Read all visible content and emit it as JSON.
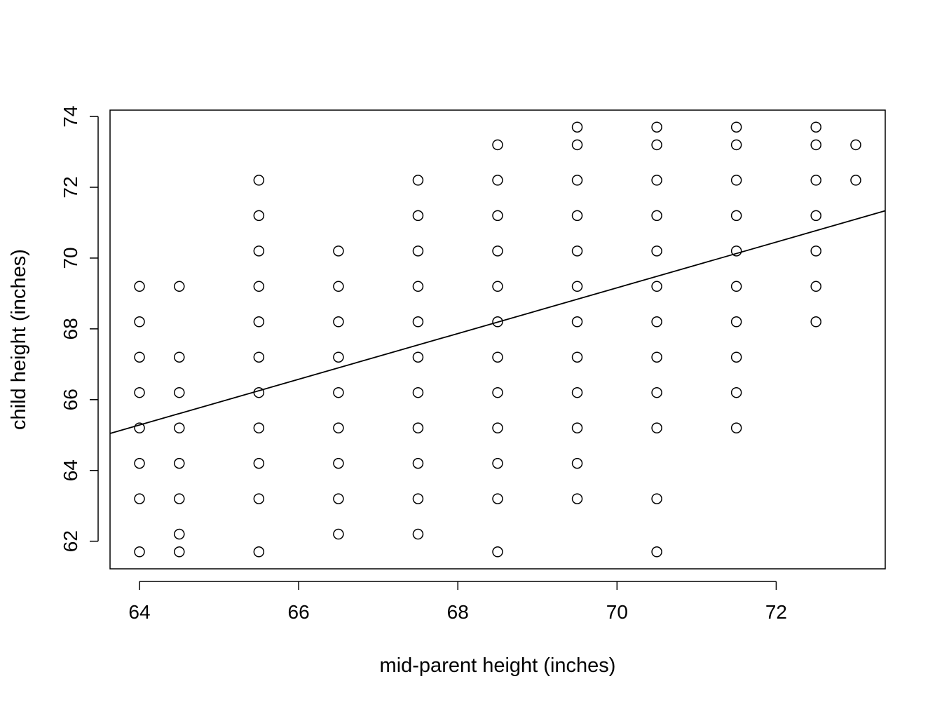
{
  "chart_data": {
    "type": "scatter",
    "title": "",
    "xlabel": "mid-parent height (inches)",
    "ylabel": "child height (inches)",
    "xlim": [
      63.63,
      73.37
    ],
    "ylim": [
      61.22,
      74.18
    ],
    "xticks": [
      64,
      66,
      68,
      70,
      72
    ],
    "yticks": [
      62,
      64,
      66,
      68,
      70,
      72,
      74
    ],
    "grid": false,
    "legend": "none",
    "marker": "open-circle",
    "regression_line": {
      "intercept": 23.94,
      "slope": 0.646
    },
    "series": [
      {
        "points": [
          [
            64,
            61.7
          ],
          [
            64,
            63.2
          ],
          [
            64,
            64.2
          ],
          [
            64,
            65.2
          ],
          [
            64,
            66.2
          ],
          [
            64,
            67.2
          ],
          [
            64,
            68.2
          ],
          [
            64,
            69.2
          ],
          [
            64.5,
            61.7
          ],
          [
            64.5,
            62.2
          ],
          [
            64.5,
            63.2
          ],
          [
            64.5,
            64.2
          ],
          [
            64.5,
            65.2
          ],
          [
            64.5,
            66.2
          ],
          [
            64.5,
            67.2
          ],
          [
            64.5,
            69.2
          ],
          [
            65.5,
            61.7
          ],
          [
            65.5,
            63.2
          ],
          [
            65.5,
            64.2
          ],
          [
            65.5,
            65.2
          ],
          [
            65.5,
            66.2
          ],
          [
            65.5,
            67.2
          ],
          [
            65.5,
            68.2
          ],
          [
            65.5,
            69.2
          ],
          [
            65.5,
            70.2
          ],
          [
            65.5,
            71.2
          ],
          [
            65.5,
            72.2
          ],
          [
            66.5,
            62.2
          ],
          [
            66.5,
            63.2
          ],
          [
            66.5,
            64.2
          ],
          [
            66.5,
            65.2
          ],
          [
            66.5,
            66.2
          ],
          [
            66.5,
            67.2
          ],
          [
            66.5,
            68.2
          ],
          [
            66.5,
            69.2
          ],
          [
            66.5,
            70.2
          ],
          [
            67.5,
            62.2
          ],
          [
            67.5,
            63.2
          ],
          [
            67.5,
            64.2
          ],
          [
            67.5,
            65.2
          ],
          [
            67.5,
            66.2
          ],
          [
            67.5,
            67.2
          ],
          [
            67.5,
            68.2
          ],
          [
            67.5,
            69.2
          ],
          [
            67.5,
            70.2
          ],
          [
            67.5,
            71.2
          ],
          [
            67.5,
            72.2
          ],
          [
            68.5,
            61.7
          ],
          [
            68.5,
            63.2
          ],
          [
            68.5,
            64.2
          ],
          [
            68.5,
            65.2
          ],
          [
            68.5,
            66.2
          ],
          [
            68.5,
            67.2
          ],
          [
            68.5,
            68.2
          ],
          [
            68.5,
            69.2
          ],
          [
            68.5,
            70.2
          ],
          [
            68.5,
            71.2
          ],
          [
            68.5,
            72.2
          ],
          [
            68.5,
            73.2
          ],
          [
            69.5,
            63.2
          ],
          [
            69.5,
            64.2
          ],
          [
            69.5,
            65.2
          ],
          [
            69.5,
            66.2
          ],
          [
            69.5,
            67.2
          ],
          [
            69.5,
            68.2
          ],
          [
            69.5,
            69.2
          ],
          [
            69.5,
            70.2
          ],
          [
            69.5,
            71.2
          ],
          [
            69.5,
            72.2
          ],
          [
            69.5,
            73.2
          ],
          [
            69.5,
            73.7
          ],
          [
            70.5,
            61.7
          ],
          [
            70.5,
            63.2
          ],
          [
            70.5,
            65.2
          ],
          [
            70.5,
            66.2
          ],
          [
            70.5,
            67.2
          ],
          [
            70.5,
            68.2
          ],
          [
            70.5,
            69.2
          ],
          [
            70.5,
            70.2
          ],
          [
            70.5,
            71.2
          ],
          [
            70.5,
            72.2
          ],
          [
            70.5,
            73.2
          ],
          [
            70.5,
            73.7
          ],
          [
            71.5,
            65.2
          ],
          [
            71.5,
            66.2
          ],
          [
            71.5,
            67.2
          ],
          [
            71.5,
            68.2
          ],
          [
            71.5,
            69.2
          ],
          [
            71.5,
            70.2
          ],
          [
            71.5,
            71.2
          ],
          [
            71.5,
            72.2
          ],
          [
            71.5,
            73.2
          ],
          [
            71.5,
            73.7
          ],
          [
            72.5,
            68.2
          ],
          [
            72.5,
            69.2
          ],
          [
            72.5,
            70.2
          ],
          [
            72.5,
            71.2
          ],
          [
            72.5,
            72.2
          ],
          [
            72.5,
            73.2
          ],
          [
            72.5,
            73.7
          ],
          [
            73,
            72.2
          ],
          [
            73,
            73.2
          ]
        ]
      }
    ]
  }
}
